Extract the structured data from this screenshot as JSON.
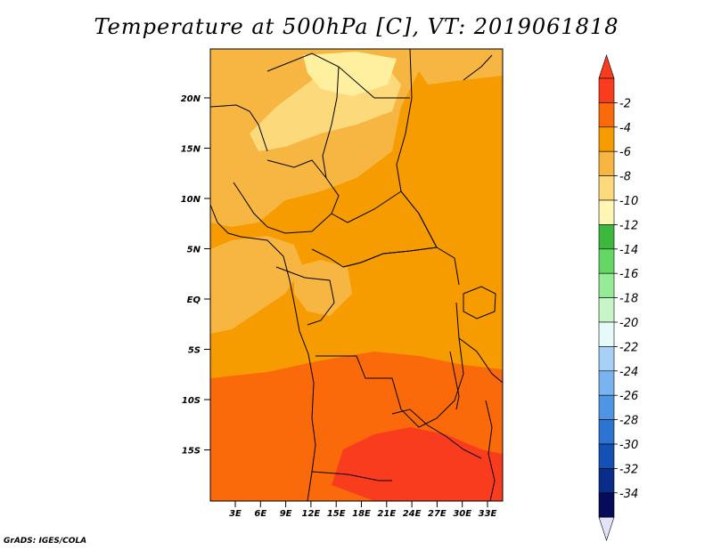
{
  "title": "Temperature at 500hPa [C], VT: 2019061818",
  "credit": "GrADS: IGES/COLA",
  "map": {
    "lat_ticks": [
      "20N",
      "15N",
      "10N",
      "5N",
      "EQ",
      "5S",
      "10S",
      "15S"
    ],
    "lon_ticks": [
      "3E",
      "6E",
      "9E",
      "12E",
      "15E",
      "18E",
      "21E",
      "24E",
      "27E",
      "30E",
      "33E"
    ]
  },
  "colorbar": {
    "labels": [
      "-2",
      "-4",
      "-6",
      "-8",
      "-10",
      "-12",
      "-14",
      "-16",
      "-18",
      "-20",
      "-22",
      "-24",
      "-26",
      "-28",
      "-30",
      "-32",
      "-34"
    ],
    "colors": [
      "#fa3c1e",
      "#fa6a0a",
      "#f79c00",
      "#f7b542",
      "#fcd97a",
      "#fff5b4",
      "#3cb83c",
      "#63d663",
      "#96eb96",
      "#c8f5c8",
      "#e6fafa",
      "#a6d0f5",
      "#7ab4f0",
      "#4f95e6",
      "#2c73d2",
      "#1550b4",
      "#0a2d8c",
      "#060c5a"
    ],
    "top_arrow_color": "#fa3c1e",
    "bottom_arrow_color": "#e2e2f8"
  },
  "palette": {
    "very_warm": "#fa3c1e",
    "warm": "#fa6a0a",
    "mid": "#f79c00",
    "cool": "#f7b542",
    "cooler": "#fcd97a",
    "coolest": "#fff0a0"
  }
}
